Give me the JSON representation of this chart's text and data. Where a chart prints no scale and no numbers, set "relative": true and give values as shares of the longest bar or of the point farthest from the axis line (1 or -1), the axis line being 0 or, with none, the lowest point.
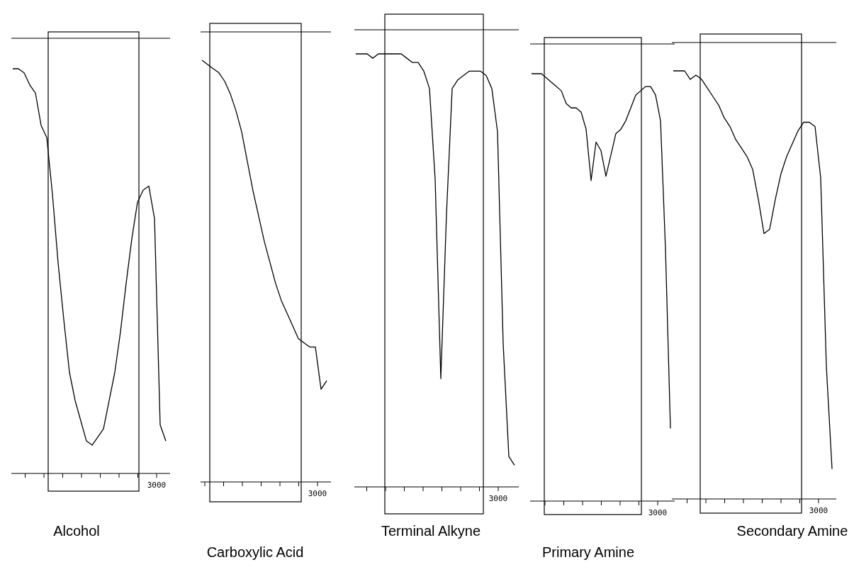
{
  "chart_data": [
    {
      "type": "line",
      "title": "Alcohol",
      "relative": true,
      "annotations": [
        "3000"
      ],
      "categories": [
        null,
        null,
        null,
        null,
        null,
        null,
        null,
        null,
        null,
        null,
        null,
        null,
        null,
        null,
        null,
        null,
        null,
        null,
        null,
        null,
        null,
        null,
        null,
        null,
        null,
        null,
        null,
        null
      ],
      "series": [
        {
          "color": "#000000",
          "values": [
            1.0,
            1.0,
            0.99,
            0.96,
            0.94,
            0.86,
            0.83,
            0.69,
            0.52,
            0.38,
            0.25,
            0.18,
            0.13,
            0.08,
            0.07,
            0.09,
            0.11,
            0.18,
            0.25,
            0.35,
            0.47,
            0.58,
            0.67,
            0.7,
            0.71,
            0.63,
            0.12,
            0.08
          ]
        }
      ]
    },
    {
      "type": "line",
      "title": "Carboxylic Acid",
      "relative": true,
      "annotations": [
        "3000"
      ],
      "categories": [
        null,
        null,
        null,
        null,
        null,
        null,
        null,
        null,
        null,
        null,
        null,
        null,
        null,
        null,
        null,
        null,
        null,
        null,
        null,
        null,
        null,
        null,
        null
      ],
      "series": [
        {
          "color": "#000000",
          "values": [
            1.0,
            0.99,
            0.98,
            0.97,
            0.95,
            0.92,
            0.88,
            0.83,
            0.76,
            0.69,
            0.63,
            0.57,
            0.52,
            0.47,
            0.43,
            0.4,
            0.37,
            0.34,
            0.33,
            0.32,
            0.32,
            0.22,
            0.24
          ]
        }
      ]
    },
    {
      "type": "line",
      "title": "Terminal Alkyne",
      "relative": true,
      "annotations": [
        "3000"
      ],
      "categories": [
        null,
        null,
        null,
        null,
        null,
        null,
        null,
        null,
        null,
        null,
        null,
        null,
        null,
        null,
        null,
        null,
        null,
        null,
        null,
        null,
        null,
        null,
        null,
        null,
        null,
        null,
        null,
        null,
        null
      ],
      "series": [
        {
          "color": "#000000",
          "values": [
            1.0,
            1.0,
            1.0,
            0.99,
            1.0,
            1.0,
            1.0,
            1.0,
            1.0,
            0.99,
            0.98,
            0.98,
            0.96,
            0.92,
            0.71,
            0.25,
            0.63,
            0.92,
            0.94,
            0.95,
            0.96,
            0.96,
            0.96,
            0.95,
            0.92,
            0.82,
            0.33,
            0.07,
            0.05
          ]
        }
      ]
    },
    {
      "type": "line",
      "title": "Primary Amine",
      "relative": true,
      "annotations": [
        "3000"
      ],
      "categories": [
        null,
        null,
        null,
        null,
        null,
        null,
        null,
        null,
        null,
        null,
        null,
        null,
        null,
        null,
        null,
        null,
        null,
        null,
        null,
        null,
        null,
        null,
        null,
        null,
        null,
        null,
        null,
        null,
        null
      ],
      "series": [
        {
          "color": "#000000",
          "values": [
            1.0,
            1.0,
            1.0,
            0.99,
            0.98,
            0.97,
            0.96,
            0.93,
            0.92,
            0.92,
            0.91,
            0.87,
            0.75,
            0.84,
            0.82,
            0.76,
            0.81,
            0.86,
            0.87,
            0.89,
            0.92,
            0.95,
            0.96,
            0.97,
            0.97,
            0.95,
            0.89,
            0.59,
            0.17
          ]
        }
      ]
    },
    {
      "type": "line",
      "title": "Secondary Amine",
      "relative": true,
      "annotations": [
        "3000"
      ],
      "categories": [
        null,
        null,
        null,
        null,
        null,
        null,
        null,
        null,
        null,
        null,
        null,
        null,
        null,
        null,
        null,
        null,
        null,
        null,
        null,
        null,
        null,
        null,
        null,
        null,
        null,
        null,
        null,
        null,
        null
      ],
      "series": [
        {
          "color": "#000000",
          "values": [
            1.0,
            1.0,
            1.0,
            0.98,
            0.99,
            0.98,
            0.96,
            0.94,
            0.92,
            0.89,
            0.87,
            0.84,
            0.82,
            0.8,
            0.77,
            0.7,
            0.62,
            0.63,
            0.7,
            0.76,
            0.8,
            0.83,
            0.86,
            0.88,
            0.88,
            0.87,
            0.75,
            0.31,
            0.07
          ]
        }
      ]
    }
  ]
}
